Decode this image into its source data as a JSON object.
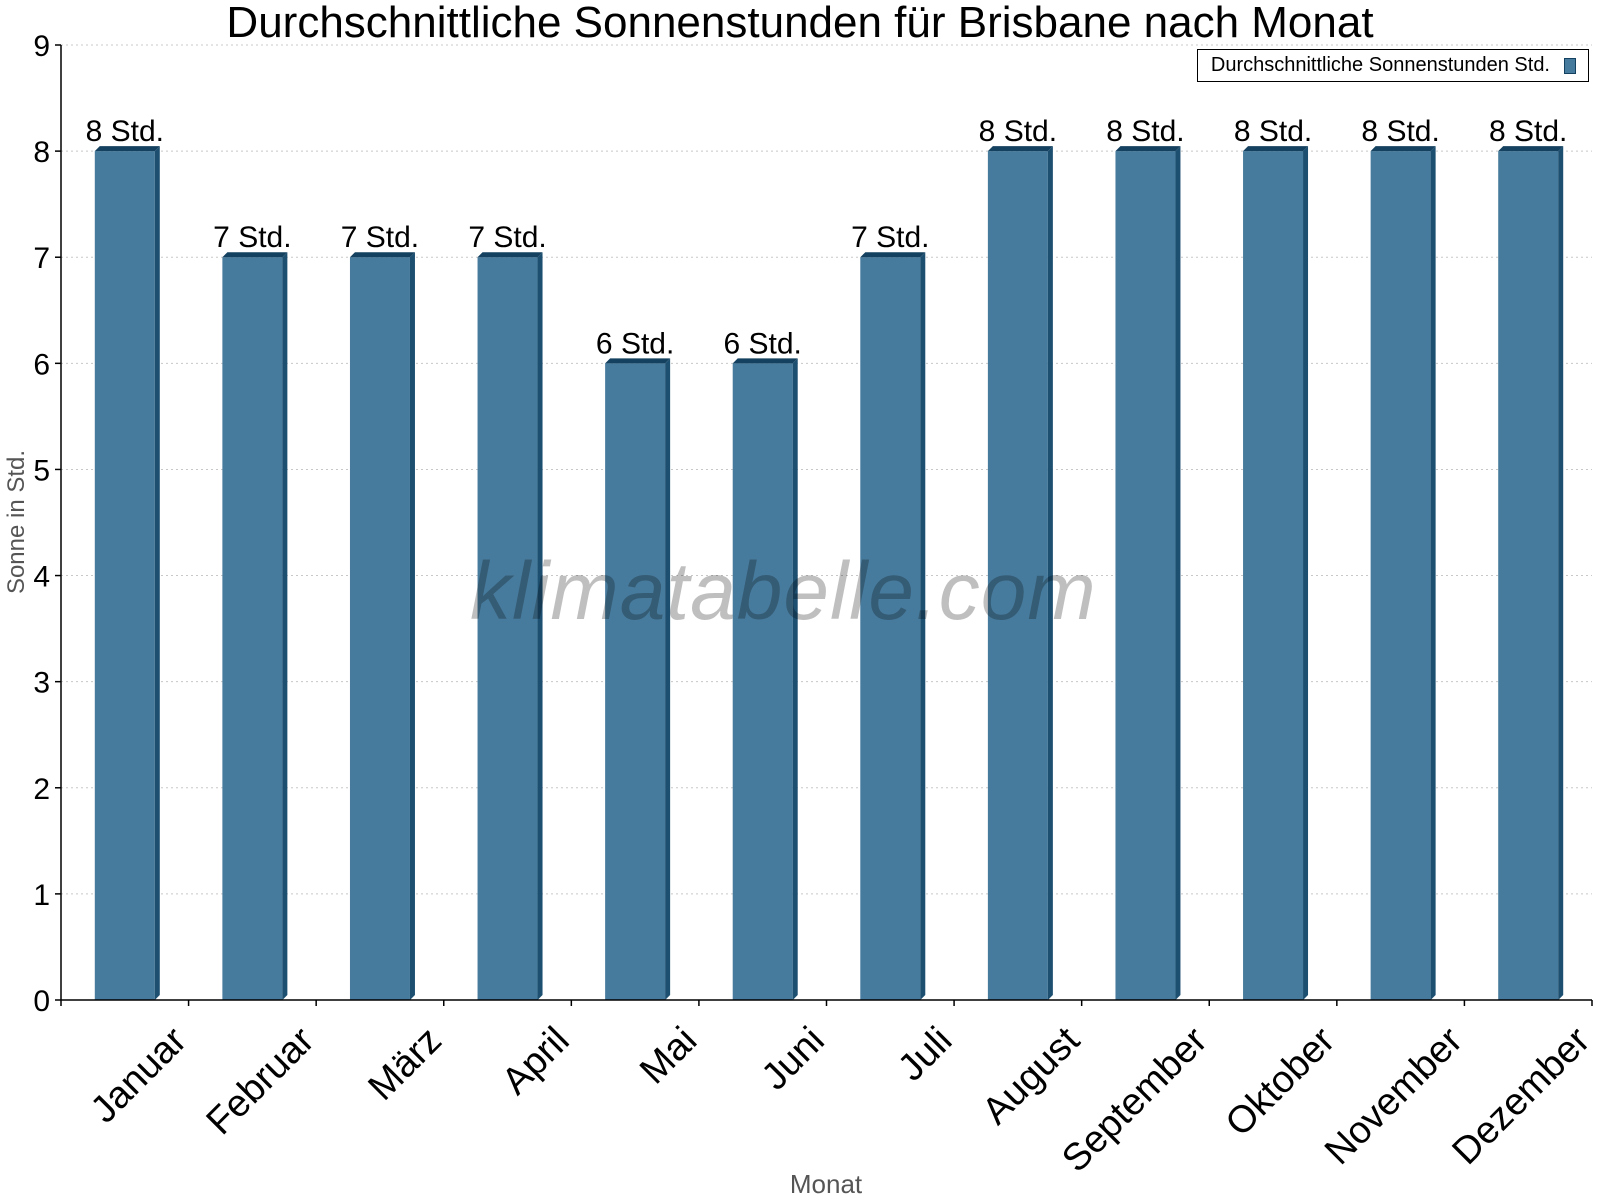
{
  "title": "Durchschnittliche Sonnenstunden für Brisbane nach Monat",
  "watermark": "klimatabelle.com",
  "legend": {
    "label": "Durchschnittliche Sonnenstunden Std."
  },
  "colors": {
    "bar": "#477b9d",
    "bar_side": "#1d4f70",
    "bar_top": "#14415f",
    "grid": "#c8c8c8",
    "axis": "#000000",
    "axis_title": "#555555"
  },
  "chart_data": {
    "type": "bar",
    "title": "Durchschnittliche Sonnenstunden für Brisbane nach Monat",
    "xlabel": "Monat",
    "ylabel": "Sonne in Std.",
    "ylim": [
      0,
      9
    ],
    "yticks": [
      0,
      1,
      2,
      3,
      4,
      5,
      6,
      7,
      8,
      9
    ],
    "grid": true,
    "legend_position": "top-right",
    "categories": [
      "Januar",
      "Februar",
      "März",
      "April",
      "Mai",
      "Juni",
      "Juli",
      "August",
      "September",
      "Oktober",
      "November",
      "Dezember"
    ],
    "series": [
      {
        "name": "Durchschnittliche Sonnenstunden Std.",
        "values": [
          8,
          7,
          7,
          7,
          6,
          6,
          7,
          8,
          8,
          8,
          8,
          8
        ],
        "data_labels": [
          "8 Std.",
          "7 Std.",
          "7 Std.",
          "7 Std.",
          "6 Std.",
          "6 Std.",
          "7 Std.",
          "8 Std.",
          "8 Std.",
          "8 Std.",
          "8 Std.",
          "8 Std."
        ]
      }
    ]
  }
}
